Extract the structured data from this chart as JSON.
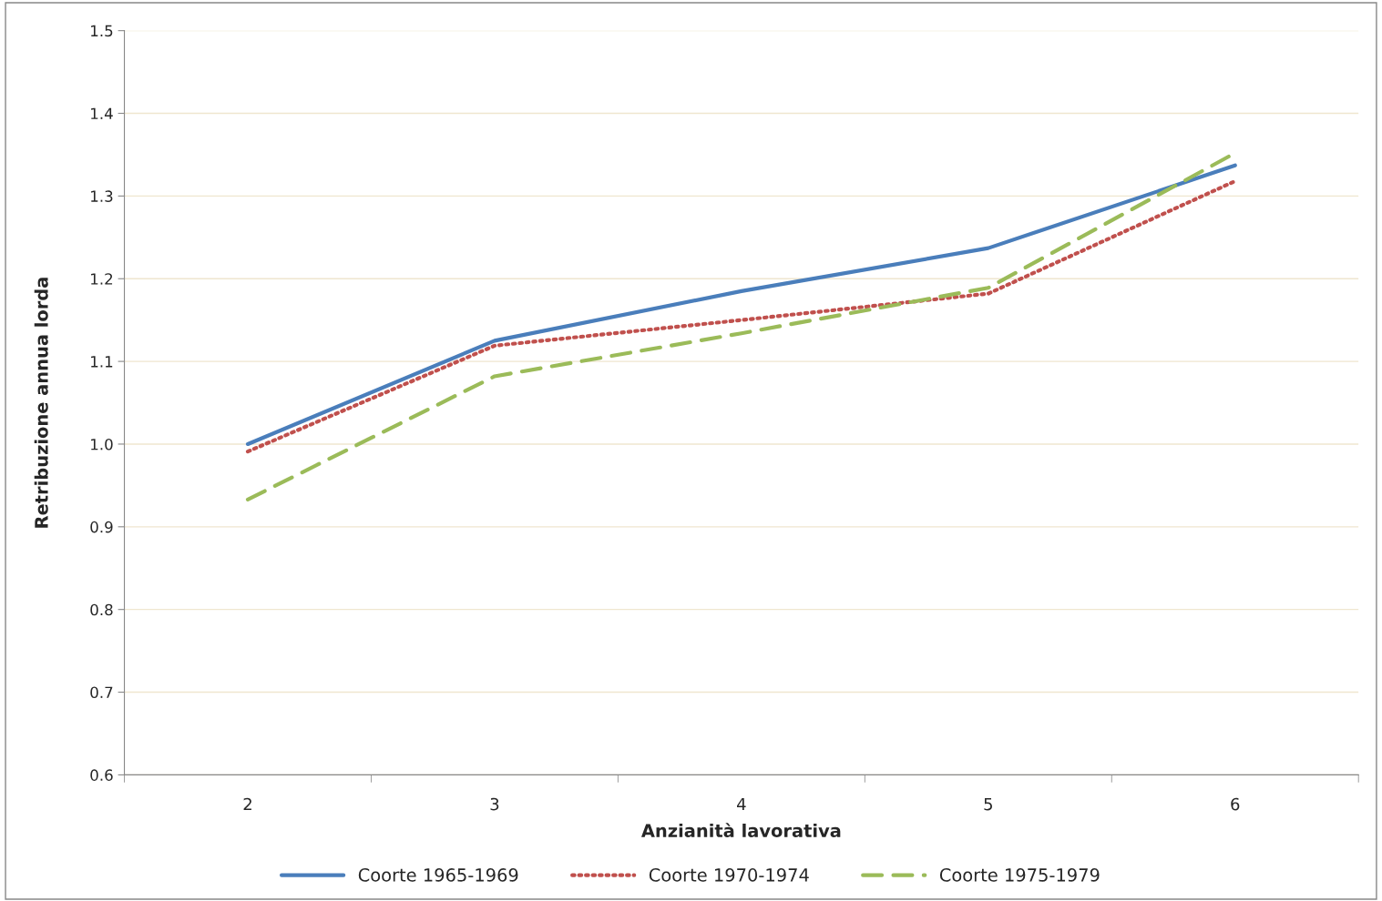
{
  "chart_data": {
    "type": "line",
    "xlabel": "Anzianità lavorativa",
    "ylabel": "Retribuzione annua lorda",
    "categories": [
      "2",
      "3",
      "4",
      "5",
      "6"
    ],
    "series": [
      {
        "name": "Coorte 1965-1969",
        "color": "#4a7ebb",
        "line_style": "solid",
        "values": [
          1.0,
          1.125,
          1.185,
          1.237,
          1.337
        ]
      },
      {
        "name": "Coorte 1970-1974",
        "color": "#c0504d",
        "line_style": "dotted",
        "values": [
          0.991,
          1.119,
          1.15,
          1.182,
          1.318
        ]
      },
      {
        "name": "Coorte 1975-1979",
        "color": "#9bbb59",
        "line_style": "dashed",
        "values": [
          0.933,
          1.082,
          1.134,
          1.189,
          1.352
        ]
      }
    ],
    "ylim": [
      0.6,
      1.5
    ],
    "yticks": [
      0.6,
      0.7,
      0.8,
      0.9,
      {
        "value": 1.0,
        "label": "1.0"
      },
      1.1,
      1.2,
      1.3,
      1.4,
      1.5
    ],
    "grid": "y",
    "legend": "bottom",
    "marker": "none"
  }
}
